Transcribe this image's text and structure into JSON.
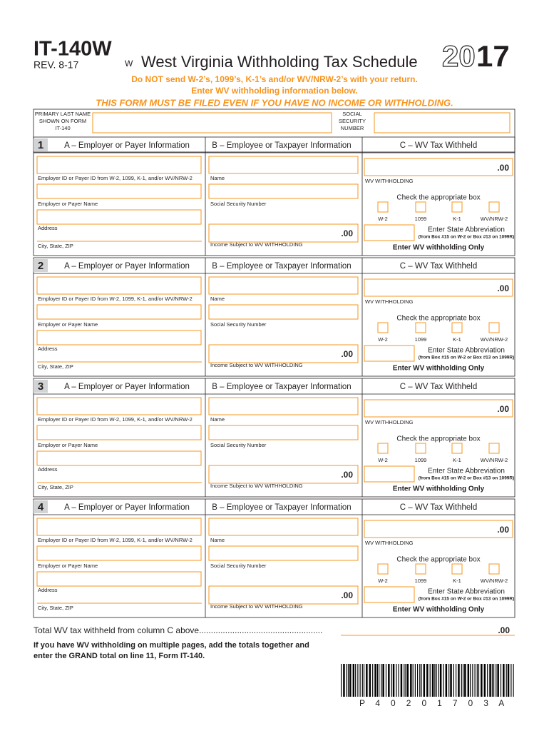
{
  "header": {
    "form_id": "IT-140W",
    "revision": "REV. 8-17",
    "w_mark": "W",
    "title": "West Virginia Withholding Tax Schedule",
    "year_outline": "20",
    "year_solid": "17"
  },
  "notices": [
    "Do NOT send W-2’s, 1099’s, K-1’s and/or WV/NRW-2’s with your return.",
    "Enter WV withholding information below.",
    "THIS FORM MUST BE FILED EVEN IF YOU HAVE NO INCOME OR WITHHOLDING."
  ],
  "taxpayer": {
    "last_name_label": [
      "PRIMARY LAST NAME",
      "SHOWN ON FORM",
      "IT-140"
    ],
    "ssn_label": [
      "SOCIAL",
      "SECURITY",
      "NUMBER"
    ]
  },
  "sections": [
    "1",
    "2",
    "3",
    "4"
  ],
  "section_labels": {
    "col_a": "A – Employer or Payer Information",
    "col_b": "B – Employee or Taxpayer Information",
    "col_c": "C – WV Tax Withheld",
    "employer_id": "Employer ID or Payer ID from W-2, 1099, K-1, and/or WV/NRW-2",
    "employer_name": "Employer or Payer Name",
    "address": "Address",
    "city": "City, State, ZIP",
    "name": "Name",
    "ssn": "Social Security Number",
    "cents": ".00",
    "income": "Income Subject to WV WITHHOLDING",
    "wv_withholding": "WV WITHHOLDING",
    "check": "Check the appropriate box",
    "boxes": [
      "W-2",
      "1099",
      "K-1",
      "WV/NRW-2"
    ],
    "state_abbrev": "Enter State Abbreviation",
    "state_note": "(from Box #15 on W-2 or Box #13 on 1099R)",
    "enter_only": "Enter WV withholding Only"
  },
  "footer": {
    "total_label": "Total WV tax withheld from column C above....................................................",
    "total_cents": ".00",
    "instructions": [
      "If you have WV withholding on multiple pages, add the totals together and",
      "enter the GRAND total on line 11, Form IT-140."
    ],
    "barcode_text": [
      "P",
      "4",
      "0",
      "2",
      "0",
      "1",
      "7",
      "0",
      "3",
      "A"
    ]
  }
}
